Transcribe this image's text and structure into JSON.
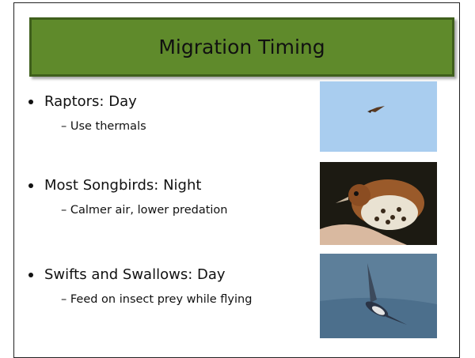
{
  "slide": {
    "title": "Migration Timing",
    "bullets": [
      {
        "text": "Raptors: Day",
        "sub": "– Use thermals"
      },
      {
        "text": "Most Songbirds: Night",
        "sub": "– Calmer air, lower predation"
      },
      {
        "text": "Swifts and Swallows: Day",
        "sub": "– Feed on insect prey while flying"
      }
    ]
  }
}
